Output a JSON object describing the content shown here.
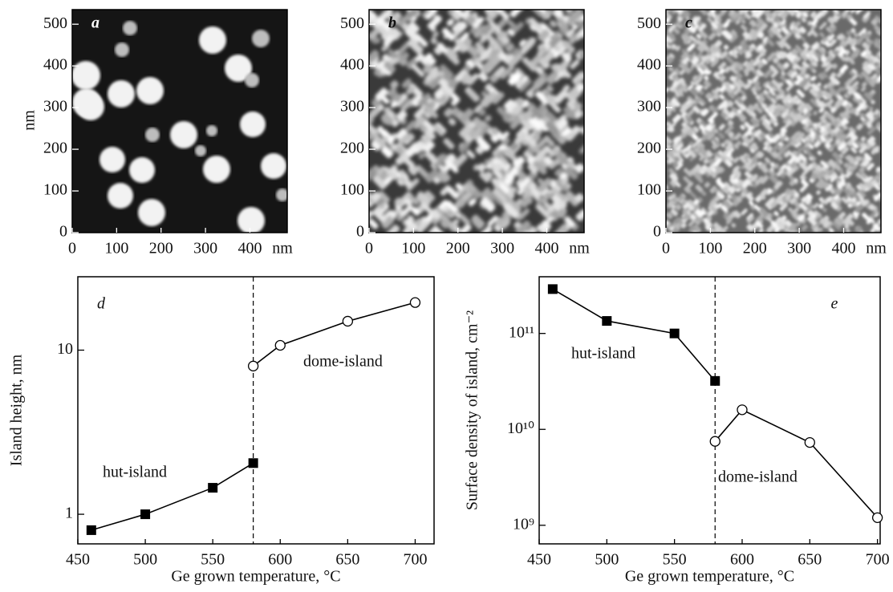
{
  "chart_data": [
    {
      "type": "image",
      "label": "a",
      "x_label": "nm",
      "y_label": "nm",
      "xlim": [
        0,
        484
      ],
      "ylim": [
        0,
        535
      ],
      "xticks": [
        0,
        100,
        200,
        300,
        400
      ],
      "yticks": [
        0,
        100,
        200,
        300,
        400,
        500
      ]
    },
    {
      "type": "image",
      "label": "b",
      "x_label": "nm",
      "xlim": [
        0,
        484
      ],
      "ylim": [
        0,
        535
      ],
      "xticks": [
        0,
        100,
        200,
        300,
        400
      ],
      "yticks": [
        0,
        100,
        200,
        300,
        400,
        500
      ]
    },
    {
      "type": "image",
      "label": "c",
      "x_label": "nm",
      "xlim": [
        0,
        484
      ],
      "ylim": [
        0,
        535
      ],
      "xticks": [
        0,
        100,
        200,
        300,
        400
      ],
      "yticks": [
        0,
        100,
        200,
        300,
        400,
        500
      ]
    },
    {
      "type": "line",
      "label": "d",
      "x_label": "Ge grown temperature, °C",
      "y_label": "Island height, nm",
      "y_log": true,
      "xlim": [
        450,
        714
      ],
      "ylim": [
        0.66,
        28
      ],
      "xticks": [
        450,
        500,
        550,
        600,
        650,
        700
      ],
      "yticks": [
        1,
        10
      ],
      "vline": 580,
      "color": "#000000",
      "series": [
        {
          "name": "hut-island",
          "marker": "square",
          "x": [
            460,
            500,
            550,
            580
          ],
          "values": [
            0.8,
            1.0,
            1.45,
            2.05
          ]
        },
        {
          "name": "dome-island",
          "marker": "circle",
          "x": [
            580,
            600,
            650,
            700
          ],
          "values": [
            8,
            10.7,
            15,
            19.5
          ]
        }
      ]
    },
    {
      "type": "line",
      "label": "e",
      "x_label": "Ge grown temperature, °C",
      "y_label": "Surface density of island, cm⁻²",
      "y_log": true,
      "xlim": [
        450,
        702
      ],
      "ylim": [
        640000000,
        390000000000
      ],
      "xticks": [
        450,
        500,
        550,
        600,
        650,
        700
      ],
      "yticks": [
        {
          "value": 1000000000,
          "label": "10⁹"
        },
        {
          "value": 10000000000,
          "label": "10¹⁰"
        },
        {
          "value": 100000000000,
          "label": "10¹¹"
        }
      ],
      "vline": 580,
      "color": "#000000",
      "series": [
        {
          "name": "hut-island",
          "marker": "square",
          "x": [
            460,
            500,
            550,
            580
          ],
          "values": [
            290000000000,
            135000000000,
            100000000000,
            32000000000
          ]
        },
        {
          "name": "dome-island",
          "marker": "circle",
          "x": [
            580,
            600,
            650,
            700
          ],
          "values": [
            7500000000,
            16000000000,
            7300000000,
            1200000000
          ]
        }
      ]
    }
  ]
}
